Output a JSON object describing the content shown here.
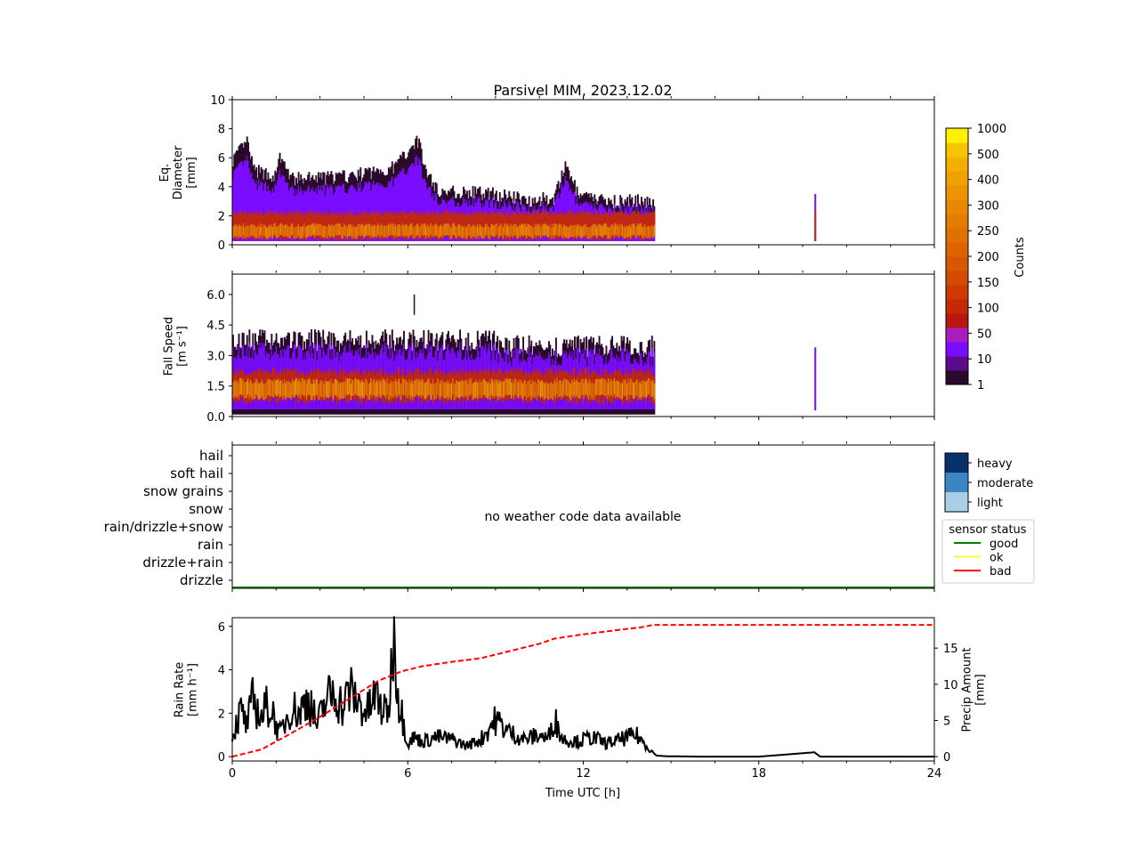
{
  "title": "Parsivel MIM, 2023.12.02",
  "xlabel": "Time UTC [h]",
  "colors": {
    "count_scale": [
      "#2a0a2a",
      "#5a0c8a",
      "#7a0cff",
      "#a81cc0",
      "#b8160e",
      "#c42a04",
      "#cc3a02",
      "#d24a00",
      "#d85800",
      "#dc6400",
      "#e07000",
      "#e47c00",
      "#e88800",
      "#ec9400",
      "#f0a000",
      "#f4ae00",
      "#f8c400",
      "#fff200"
    ],
    "intensity": {
      "light": "#a9cfe8",
      "moderate": "#3a86c3",
      "heavy": "#08306b"
    },
    "status": {
      "good": "#008000",
      "ok": "#ffff33",
      "bad": "#ff0000"
    },
    "rain_rate_line": "#000000",
    "precip_line": "#ff0000"
  },
  "chart_data": [
    {
      "id": "diameter",
      "type": "heatmap",
      "ylabel": [
        "Eq.",
        "Diameter",
        "[mm]"
      ],
      "xlim": [
        0,
        24
      ],
      "xticks": [
        0,
        6,
        12,
        18,
        24
      ],
      "ylim": [
        0,
        10
      ],
      "yticks": [
        "0",
        "2",
        "4",
        "6",
        "8",
        "10"
      ],
      "yticks_values": [
        0,
        2,
        4,
        6,
        8,
        10
      ],
      "data_span_h": [
        0,
        14.4
      ],
      "isolated_event_h": 19.9,
      "max_diameter_profile": [
        [
          0,
          5.8
        ],
        [
          0.5,
          7.0
        ],
        [
          0.7,
          5.0
        ],
        [
          1.5,
          4.6
        ],
        [
          1.6,
          6.0
        ],
        [
          2.0,
          4.4
        ],
        [
          4.0,
          4.6
        ],
        [
          5.5,
          5.2
        ],
        [
          6.3,
          7.2
        ],
        [
          6.6,
          5.0
        ],
        [
          7.0,
          3.6
        ],
        [
          9.0,
          3.4
        ],
        [
          10.0,
          3.0
        ],
        [
          11.0,
          3.1
        ],
        [
          11.4,
          5.5
        ],
        [
          11.8,
          3.2
        ],
        [
          13.0,
          2.9
        ],
        [
          14.4,
          2.9
        ]
      ]
    },
    {
      "id": "fallspeed",
      "type": "heatmap",
      "ylabel": [
        "Fall Speed",
        "[m s⁻¹]"
      ],
      "xlim": [
        0,
        24
      ],
      "ylim": [
        0,
        7
      ],
      "yticks": [
        "0.0",
        "1.5",
        "3.0",
        "4.5",
        "6.0"
      ],
      "yticks_values": [
        0,
        1.5,
        3,
        4.5,
        6
      ],
      "data_span_h": [
        0,
        14.4
      ],
      "isolated_event_h": 19.9
    },
    {
      "id": "weather",
      "type": "table",
      "categories": [
        "drizzle",
        "drizzle+rain",
        "rain",
        "rain/drizzle+snow",
        "snow",
        "snow grains",
        "soft hail",
        "hail"
      ],
      "no_data_text": "no weather code data available",
      "sensor_status_level": "good"
    },
    {
      "id": "rain",
      "type": "line",
      "ylabel": [
        "Rain Rate",
        "[mm h⁻¹]"
      ],
      "y2label": [
        "Precip Amount",
        "[mm]"
      ],
      "xlim": [
        0,
        24
      ],
      "ylim": [
        -0.2,
        6.4
      ],
      "yticks": [
        "0",
        "2",
        "4",
        "6"
      ],
      "yticks_values": [
        0,
        2,
        4,
        6
      ],
      "y2lim": [
        -0.6,
        19.2
      ],
      "y2ticks": [
        "0",
        "5",
        "10",
        "15"
      ],
      "y2ticks_values": [
        0,
        5,
        10,
        15
      ],
      "series": [
        {
          "name": "Rain Rate",
          "x": [
            0,
            0.3,
            0.5,
            0.7,
            1.0,
            1.2,
            1.4,
            1.6,
            1.8,
            2.0,
            2.3,
            2.6,
            2.9,
            3.2,
            3.5,
            3.8,
            4.0,
            4.3,
            4.6,
            4.9,
            5.2,
            5.4,
            5.5,
            5.7,
            5.9,
            6.0,
            6.2,
            6.5,
            7.0,
            7.5,
            8.0,
            8.5,
            9.0,
            9.5,
            10.0,
            10.5,
            10.8,
            11.0,
            11.3,
            11.8,
            12.3,
            12.8,
            13.3,
            13.8,
            14.1,
            14.3,
            14.5,
            14.8,
            16.0,
            18.0,
            19.9,
            20.1,
            24.0
          ],
          "y": [
            1.0,
            2.1,
            1.4,
            2.6,
            1.8,
            2.4,
            2.0,
            1.0,
            1.6,
            2.3,
            2.0,
            2.8,
            1.4,
            2.6,
            3.0,
            2.2,
            3.1,
            2.5,
            2.0,
            2.8,
            2.0,
            2.6,
            6.0,
            2.6,
            1.3,
            0.6,
            0.9,
            0.7,
            0.9,
            0.8,
            0.5,
            0.8,
            1.7,
            1.1,
            0.8,
            1.0,
            0.8,
            1.8,
            0.8,
            0.7,
            0.9,
            0.6,
            0.8,
            1.0,
            0.6,
            0.3,
            0.05,
            0.02,
            0.0,
            0.0,
            0.2,
            0.0,
            0.0
          ]
        },
        {
          "name": "Precip Amount",
          "axis": "right",
          "x": [
            0,
            1,
            2,
            3,
            4,
            5,
            5.8,
            6.5,
            7.5,
            8.5,
            9.5,
            10.5,
            11.0,
            12.0,
            13.0,
            14.0,
            14.4,
            16,
            20,
            24
          ],
          "y": [
            0.0,
            1.0,
            3.2,
            5.5,
            8.0,
            10.5,
            11.8,
            12.5,
            13.1,
            13.6,
            14.6,
            15.6,
            16.3,
            16.9,
            17.4,
            17.9,
            18.2,
            18.2,
            18.2,
            18.2
          ]
        }
      ]
    }
  ],
  "colorbar": {
    "label": "Counts",
    "ticks": [
      "1",
      "10",
      "50",
      "100",
      "150",
      "200",
      "250",
      "300",
      "400",
      "500",
      "1000"
    ]
  },
  "intensity_legend": {
    "entries": [
      "heavy",
      "moderate",
      "light"
    ]
  },
  "status_legend": {
    "title": "sensor status",
    "entries": [
      "good",
      "ok",
      "bad"
    ]
  }
}
